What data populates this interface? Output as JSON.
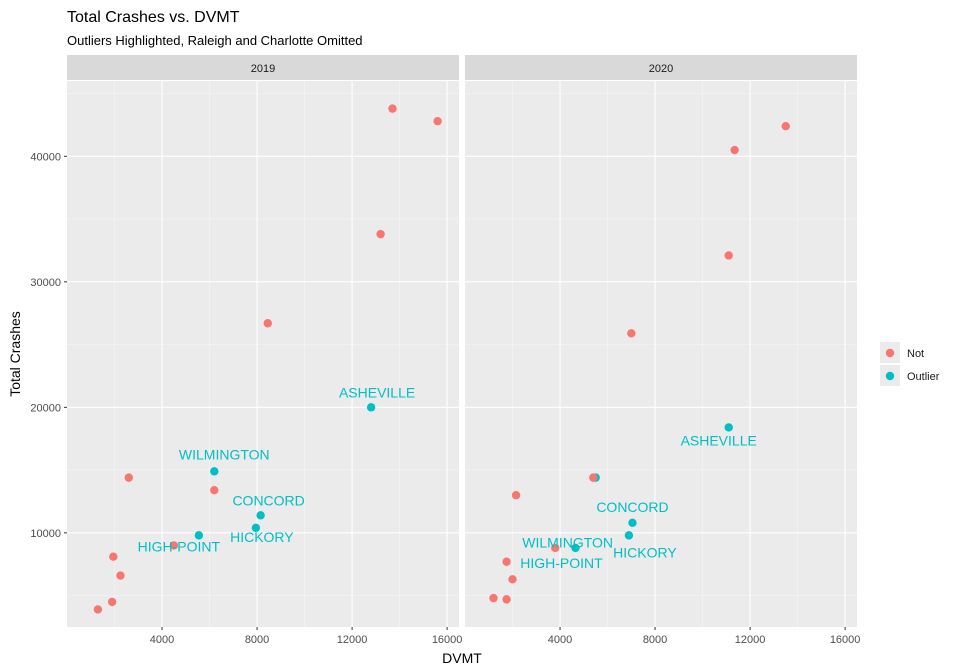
{
  "chart_data": {
    "type": "scatter",
    "title": "Total Crashes vs. DVMT",
    "subtitle": "Outliers Highlighted, Raleigh and Charlotte Omitted",
    "xlabel": "DVMT",
    "ylabel": "Total Crashes",
    "xlim": [
      0,
      16500
    ],
    "ylim": [
      2500,
      46000
    ],
    "x_ticks": [
      4000,
      8000,
      12000,
      16000
    ],
    "y_ticks": [
      10000,
      20000,
      30000,
      40000
    ],
    "grid": true,
    "legend": {
      "placement": "right",
      "entries": [
        {
          "label": "Not",
          "color": "#F8766D"
        },
        {
          "label": "Outlier",
          "color": "#00BFC4"
        }
      ]
    },
    "facets": [
      {
        "label": "2019",
        "points": [
          {
            "x": 13700,
            "y": 43800,
            "group": "Not"
          },
          {
            "x": 15600,
            "y": 42800,
            "group": "Not"
          },
          {
            "x": 13200,
            "y": 33800,
            "group": "Not"
          },
          {
            "x": 8450,
            "y": 26700,
            "group": "Not"
          },
          {
            "x": 12800,
            "y": 20000,
            "group": "Outlier",
            "label": "ASHEVILLE"
          },
          {
            "x": 6200,
            "y": 14900,
            "group": "Outlier",
            "label": "WILMINGTON"
          },
          {
            "x": 2600,
            "y": 14400,
            "group": "Not"
          },
          {
            "x": 6200,
            "y": 13400,
            "group": "Not"
          },
          {
            "x": 8150,
            "y": 11400,
            "group": "Outlier",
            "label": "CONCORD"
          },
          {
            "x": 7950,
            "y": 10400,
            "group": "Outlier",
            "label": "HICKORY"
          },
          {
            "x": 5550,
            "y": 9800,
            "group": "Outlier",
            "label": "HIGH-POINT"
          },
          {
            "x": 4500,
            "y": 9000,
            "group": "Not"
          },
          {
            "x": 1950,
            "y": 8100,
            "group": "Not"
          },
          {
            "x": 2250,
            "y": 6600,
            "group": "Not"
          },
          {
            "x": 1900,
            "y": 4500,
            "group": "Not"
          },
          {
            "x": 1300,
            "y": 3900,
            "group": "Not"
          }
        ]
      },
      {
        "label": "2020",
        "points": [
          {
            "x": 13500,
            "y": 42400,
            "group": "Not"
          },
          {
            "x": 11350,
            "y": 40500,
            "group": "Not"
          },
          {
            "x": 11100,
            "y": 32100,
            "group": "Not"
          },
          {
            "x": 7000,
            "y": 25900,
            "group": "Not"
          },
          {
            "x": 11100,
            "y": 18400,
            "group": "Outlier",
            "label": "ASHEVILLE"
          },
          {
            "x": 5500,
            "y": 14400,
            "group": "Outlier",
            "label": "WILMINGTON"
          },
          {
            "x": 5400,
            "y": 14400,
            "group": "Not"
          },
          {
            "x": 2150,
            "y": 13000,
            "group": "Not"
          },
          {
            "x": 7050,
            "y": 10800,
            "group": "Outlier",
            "label": "CONCORD"
          },
          {
            "x": 6900,
            "y": 9800,
            "group": "Outlier",
            "label": "HICKORY"
          },
          {
            "x": 4650,
            "y": 8800,
            "group": "Outlier",
            "label": "HIGH-POINT"
          },
          {
            "x": 3800,
            "y": 8800,
            "group": "Not"
          },
          {
            "x": 1750,
            "y": 7700,
            "group": "Not"
          },
          {
            "x": 2000,
            "y": 6300,
            "group": "Not"
          },
          {
            "x": 1200,
            "y": 4800,
            "group": "Not"
          },
          {
            "x": 1750,
            "y": 4700,
            "group": "Not"
          }
        ]
      }
    ]
  }
}
